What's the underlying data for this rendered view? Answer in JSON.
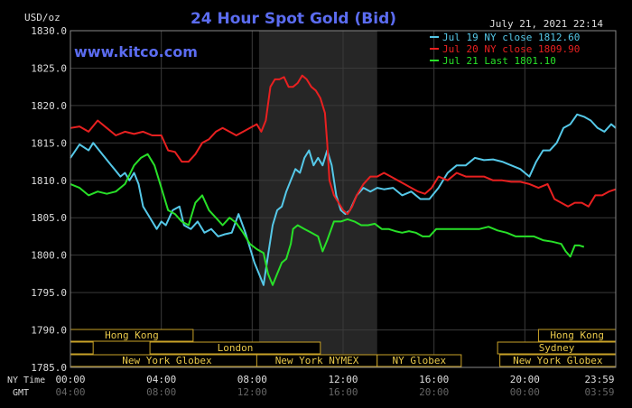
{
  "chart_data": {
    "type": "line",
    "title": "24 Hour Spot Gold (Bid)",
    "ylabel": "USD/oz",
    "ylim": [
      1785,
      1830
    ],
    "yticks": [
      1785,
      1790,
      1795,
      1800,
      1805,
      1810,
      1815,
      1820,
      1825,
      1830
    ],
    "ytick_labels": [
      "1785.0",
      "1790.0",
      "1795.0",
      "1800.0",
      "1805.0",
      "1810.0",
      "1815.0",
      "1820.0",
      "1825.0",
      "1830.0"
    ],
    "xlim": [
      0,
      24
    ],
    "xticks": [
      0,
      4,
      8,
      12,
      16,
      20,
      24
    ],
    "ny_time_label": "NY Time",
    "gmt_label": "GMT",
    "ny_time_ticks": [
      "00:00",
      "04:00",
      "08:00",
      "12:00",
      "16:00",
      "20:00",
      "23:59"
    ],
    "gmt_ticks": [
      "04:00",
      "08:00",
      "12:00",
      "16:00",
      "20:00",
      "00:00",
      "03:59"
    ],
    "date_stamp": "July 21, 2021 22:14",
    "watermark": "www.kitco.com",
    "shaded_region": [
      8.3,
      13.5
    ],
    "grid": true,
    "legend_position": "top-right",
    "series": [
      {
        "name": "Jul 19 NY close 1812.60",
        "color": "#55c8e8",
        "points": [
          [
            0,
            1813
          ],
          [
            0.4,
            1814.8
          ],
          [
            0.8,
            1814
          ],
          [
            1,
            1815
          ],
          [
            1.4,
            1813.5
          ],
          [
            1.8,
            1812
          ],
          [
            2.2,
            1810.5
          ],
          [
            2.4,
            1811
          ],
          [
            2.6,
            1810
          ],
          [
            2.8,
            1811
          ],
          [
            3,
            1809.5
          ],
          [
            3.2,
            1806.5
          ],
          [
            3.4,
            1805.5
          ],
          [
            3.6,
            1804.5
          ],
          [
            3.8,
            1803.5
          ],
          [
            4.0,
            1804.5
          ],
          [
            4.2,
            1804
          ],
          [
            4.5,
            1806
          ],
          [
            4.8,
            1806.5
          ],
          [
            5.0,
            1804
          ],
          [
            5.3,
            1803.5
          ],
          [
            5.6,
            1804.5
          ],
          [
            5.9,
            1803
          ],
          [
            6.2,
            1803.5
          ],
          [
            6.5,
            1802.5
          ],
          [
            6.8,
            1802.8
          ],
          [
            7.1,
            1803
          ],
          [
            7.4,
            1805.5
          ],
          [
            7.7,
            1803
          ],
          [
            7.9,
            1801
          ],
          [
            8.1,
            1799
          ],
          [
            8.3,
            1797.5
          ],
          [
            8.5,
            1796
          ],
          [
            8.7,
            1800
          ],
          [
            8.9,
            1804
          ],
          [
            9.1,
            1806
          ],
          [
            9.3,
            1806.5
          ],
          [
            9.5,
            1808.5
          ],
          [
            9.7,
            1810
          ],
          [
            9.9,
            1811.5
          ],
          [
            10.1,
            1811
          ],
          [
            10.3,
            1813
          ],
          [
            10.5,
            1814
          ],
          [
            10.7,
            1812
          ],
          [
            10.9,
            1813
          ],
          [
            11.1,
            1812
          ],
          [
            11.3,
            1814
          ],
          [
            11.5,
            1812
          ],
          [
            11.7,
            1808
          ],
          [
            11.9,
            1806
          ],
          [
            12.1,
            1805.5
          ],
          [
            12.3,
            1806
          ],
          [
            12.6,
            1808
          ],
          [
            12.9,
            1809
          ],
          [
            13.2,
            1808.5
          ],
          [
            13.5,
            1809
          ],
          [
            13.8,
            1808.8
          ],
          [
            14.2,
            1809
          ],
          [
            14.6,
            1808
          ],
          [
            15.0,
            1808.5
          ],
          [
            15.4,
            1807.5
          ],
          [
            15.8,
            1807.5
          ],
          [
            16.2,
            1809
          ],
          [
            16.6,
            1811
          ],
          [
            17.0,
            1812
          ],
          [
            17.4,
            1812
          ],
          [
            17.8,
            1813
          ],
          [
            18.2,
            1812.7
          ],
          [
            18.6,
            1812.8
          ],
          [
            19.0,
            1812.5
          ],
          [
            19.4,
            1812
          ],
          [
            19.8,
            1811.5
          ],
          [
            20.0,
            1811
          ],
          [
            20.2,
            1810.5
          ],
          [
            20.5,
            1812.5
          ],
          [
            20.8,
            1814
          ],
          [
            21.1,
            1814
          ],
          [
            21.4,
            1815
          ],
          [
            21.7,
            1817
          ],
          [
            22.0,
            1817.5
          ],
          [
            22.3,
            1818.8
          ],
          [
            22.6,
            1818.5
          ],
          [
            22.9,
            1818
          ],
          [
            23.2,
            1817
          ],
          [
            23.5,
            1816.5
          ],
          [
            23.8,
            1817.5
          ],
          [
            24,
            1817
          ]
        ]
      },
      {
        "name": "Jul 20 NY close 1809.90",
        "color": "#e82020",
        "points": [
          [
            0,
            1817
          ],
          [
            0.4,
            1817.2
          ],
          [
            0.8,
            1816.5
          ],
          [
            1.2,
            1818
          ],
          [
            1.6,
            1817
          ],
          [
            2.0,
            1816
          ],
          [
            2.4,
            1816.5
          ],
          [
            2.8,
            1816.2
          ],
          [
            3.2,
            1816.5
          ],
          [
            3.6,
            1816
          ],
          [
            4.0,
            1816
          ],
          [
            4.3,
            1814
          ],
          [
            4.6,
            1813.8
          ],
          [
            4.9,
            1812.5
          ],
          [
            5.2,
            1812.5
          ],
          [
            5.5,
            1813.5
          ],
          [
            5.8,
            1815
          ],
          [
            6.1,
            1815.5
          ],
          [
            6.4,
            1816.5
          ],
          [
            6.7,
            1817
          ],
          [
            7.0,
            1816.5
          ],
          [
            7.3,
            1816
          ],
          [
            7.6,
            1816.5
          ],
          [
            7.9,
            1817
          ],
          [
            8.2,
            1817.5
          ],
          [
            8.4,
            1816.5
          ],
          [
            8.6,
            1818
          ],
          [
            8.8,
            1822.5
          ],
          [
            9.0,
            1823.5
          ],
          [
            9.2,
            1823.5
          ],
          [
            9.4,
            1823.8
          ],
          [
            9.6,
            1822.5
          ],
          [
            9.8,
            1822.5
          ],
          [
            10.0,
            1823
          ],
          [
            10.2,
            1824
          ],
          [
            10.4,
            1823.5
          ],
          [
            10.6,
            1822.5
          ],
          [
            10.8,
            1822
          ],
          [
            11.0,
            1821
          ],
          [
            11.2,
            1819
          ],
          [
            11.3,
            1815
          ],
          [
            11.4,
            1810
          ],
          [
            11.6,
            1808
          ],
          [
            11.8,
            1807
          ],
          [
            12.0,
            1806
          ],
          [
            12.2,
            1805.5
          ],
          [
            12.4,
            1806.5
          ],
          [
            12.6,
            1808
          ],
          [
            12.9,
            1809.5
          ],
          [
            13.2,
            1810.5
          ],
          [
            13.5,
            1810.5
          ],
          [
            13.8,
            1811
          ],
          [
            14.1,
            1810.5
          ],
          [
            14.4,
            1810
          ],
          [
            14.7,
            1809.5
          ],
          [
            15.0,
            1809
          ],
          [
            15.3,
            1808.5
          ],
          [
            15.6,
            1808.2
          ],
          [
            15.9,
            1809
          ],
          [
            16.2,
            1810.5
          ],
          [
            16.6,
            1810
          ],
          [
            17.0,
            1811
          ],
          [
            17.4,
            1810.5
          ],
          [
            17.8,
            1810.5
          ],
          [
            18.2,
            1810.5
          ],
          [
            18.6,
            1810
          ],
          [
            19.0,
            1810
          ],
          [
            19.4,
            1809.8
          ],
          [
            19.8,
            1809.8
          ],
          [
            20.2,
            1809.5
          ],
          [
            20.6,
            1809
          ],
          [
            21.0,
            1809.5
          ],
          [
            21.3,
            1807.5
          ],
          [
            21.6,
            1807
          ],
          [
            21.9,
            1806.5
          ],
          [
            22.2,
            1807
          ],
          [
            22.5,
            1807
          ],
          [
            22.8,
            1806.5
          ],
          [
            23.1,
            1808
          ],
          [
            23.4,
            1808
          ],
          [
            23.7,
            1808.5
          ],
          [
            24,
            1808.8
          ]
        ]
      },
      {
        "name": "Jul 21 Last 1801.10",
        "color": "#28e028",
        "points": [
          [
            0,
            1809.5
          ],
          [
            0.4,
            1809
          ],
          [
            0.8,
            1808
          ],
          [
            1.2,
            1808.5
          ],
          [
            1.6,
            1808.2
          ],
          [
            2.0,
            1808.5
          ],
          [
            2.4,
            1809.5
          ],
          [
            2.8,
            1812
          ],
          [
            3.1,
            1813
          ],
          [
            3.4,
            1813.5
          ],
          [
            3.7,
            1812
          ],
          [
            4.0,
            1809
          ],
          [
            4.3,
            1806
          ],
          [
            4.6,
            1805.5
          ],
          [
            4.9,
            1804.5
          ],
          [
            5.2,
            1804
          ],
          [
            5.5,
            1807
          ],
          [
            5.8,
            1808
          ],
          [
            6.1,
            1806
          ],
          [
            6.4,
            1805
          ],
          [
            6.7,
            1804
          ],
          [
            7.0,
            1805
          ],
          [
            7.3,
            1804.3
          ],
          [
            7.6,
            1803
          ],
          [
            7.9,
            1801.5
          ],
          [
            8.2,
            1800.8
          ],
          [
            8.5,
            1800.3
          ],
          [
            8.7,
            1797.5
          ],
          [
            8.9,
            1796
          ],
          [
            9.1,
            1797.5
          ],
          [
            9.3,
            1799
          ],
          [
            9.5,
            1799.5
          ],
          [
            9.7,
            1801.5
          ],
          [
            9.8,
            1803.5
          ],
          [
            10.0,
            1804
          ],
          [
            10.3,
            1803.5
          ],
          [
            10.6,
            1803
          ],
          [
            10.9,
            1802.5
          ],
          [
            11.1,
            1800.5
          ],
          [
            11.3,
            1802
          ],
          [
            11.6,
            1804.5
          ],
          [
            11.9,
            1804.5
          ],
          [
            12.2,
            1804.8
          ],
          [
            12.5,
            1804.5
          ],
          [
            12.8,
            1804
          ],
          [
            13.1,
            1804
          ],
          [
            13.4,
            1804.2
          ],
          [
            13.7,
            1803.5
          ],
          [
            14.0,
            1803.5
          ],
          [
            14.3,
            1803.2
          ],
          [
            14.6,
            1803
          ],
          [
            14.9,
            1803.2
          ],
          [
            15.2,
            1803
          ],
          [
            15.5,
            1802.5
          ],
          [
            15.8,
            1802.5
          ],
          [
            16.1,
            1803.5
          ],
          [
            16.4,
            1803.5
          ],
          [
            16.8,
            1803.5
          ],
          [
            17.2,
            1803.5
          ],
          [
            17.6,
            1803.5
          ],
          [
            18.0,
            1803.5
          ],
          [
            18.4,
            1803.8
          ],
          [
            18.8,
            1803.3
          ],
          [
            19.2,
            1803
          ],
          [
            19.6,
            1802.5
          ],
          [
            20.0,
            1802.5
          ],
          [
            20.4,
            1802.5
          ],
          [
            20.8,
            1802
          ],
          [
            21.2,
            1801.8
          ],
          [
            21.6,
            1801.5
          ],
          [
            21.8,
            1800.5
          ],
          [
            22.0,
            1799.8
          ],
          [
            22.2,
            1801.3
          ],
          [
            22.4,
            1801.3
          ],
          [
            22.6,
            1801.1
          ]
        ]
      }
    ],
    "market_sessions": [
      {
        "label": "Hong Kong",
        "row": 0,
        "start": 0,
        "end": 5.4
      },
      {
        "label": "Hong Kong",
        "row": 0,
        "start": 20.6,
        "end": 24
      },
      {
        "label": "",
        "row": 1,
        "start": 0,
        "end": 1.0
      },
      {
        "label": "London",
        "row": 1,
        "start": 3.5,
        "end": 11.0
      },
      {
        "label": "Sydney",
        "row": 1,
        "start": 18.8,
        "end": 24
      },
      {
        "label": "New York Globex",
        "row": 2,
        "start": 0,
        "end": 8.5
      },
      {
        "label": "New York NYMEX",
        "row": 2,
        "start": 8.2,
        "end": 13.5
      },
      {
        "label": "NY Globex",
        "row": 2,
        "start": 13.5,
        "end": 17.2
      },
      {
        "label": "New York Globex",
        "row": 2,
        "start": 18.9,
        "end": 24
      }
    ]
  }
}
